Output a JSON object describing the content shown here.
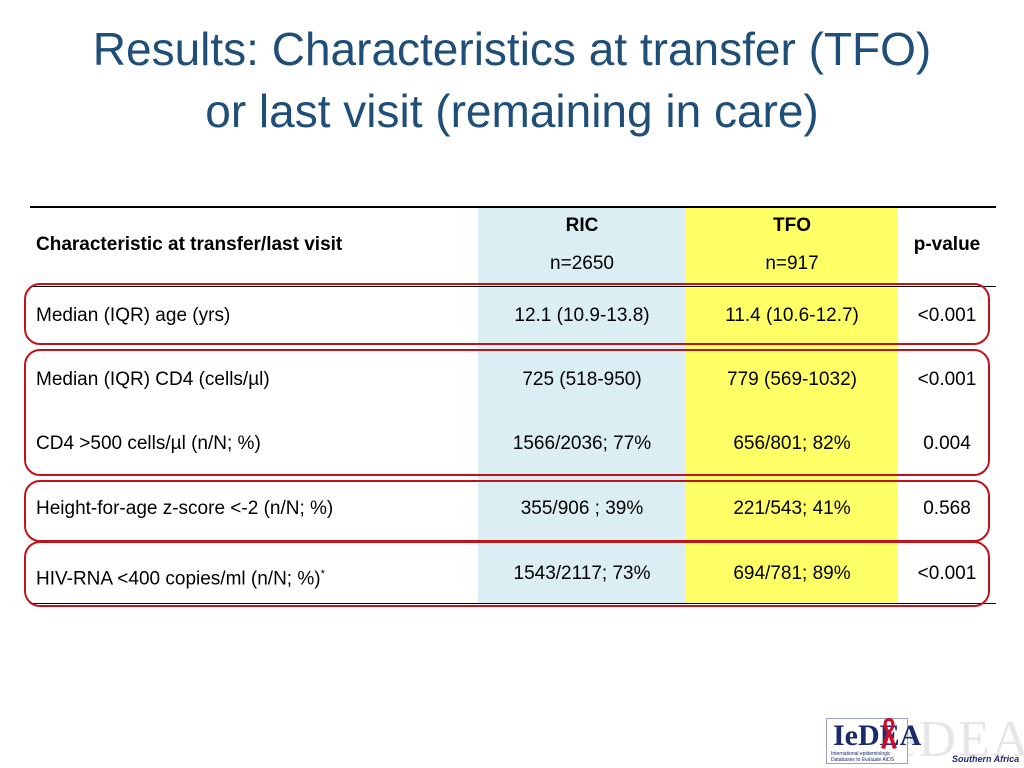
{
  "slide": {
    "title_line1": "Results: Characteristics at transfer (TFO)",
    "title_line2": "or last visit (remaining in care)"
  },
  "table": {
    "header": {
      "characteristic": "Characteristic at transfer/last visit",
      "ric_label": "RIC",
      "ric_n": "n=2650",
      "tfo_label": "TFO",
      "tfo_n": "n=917",
      "pvalue": "p-value"
    },
    "rows": [
      {
        "characteristic": "Median (IQR) age (yrs)",
        "ric": "12.1 (10.9-13.8)",
        "tfo": "11.4 (10.6-12.7)",
        "pvalue": "<0.001"
      },
      {
        "characteristic": "Median (IQR) CD4 (cells/µl)",
        "ric": "725 (518-950)",
        "tfo": "779 (569-1032)",
        "pvalue": "<0.001"
      },
      {
        "characteristic": "CD4 >500 cells/µl (n/N; %)",
        "ric": "1566/2036; 77%",
        "tfo": "656/801; 82%",
        "pvalue": "0.004"
      },
      {
        "characteristic": "Height-for-age z-score <-2 (n/N; %)",
        "ric": "355/906 ; 39%",
        "tfo": "221/543; 41%",
        "pvalue": "0.568"
      },
      {
        "characteristic": "HIV-RNA <400 copies/ml (n/N; %)",
        "footnote_mark": "*",
        "ric": "1543/2117; 73%",
        "tfo": "694/781; 89%",
        "pvalue": "<0.001"
      }
    ]
  },
  "colors": {
    "title": "#1f4e79",
    "ric_column": "#daeef3",
    "tfo_column": "#ffff66",
    "highlight_box": "#c0141c"
  },
  "logo": {
    "text": "IeDEA",
    "ghost_text": "IeDEA",
    "tagline": "International epidemiologic Databases to Evaluate AIDS",
    "region": "Southern Africa"
  }
}
